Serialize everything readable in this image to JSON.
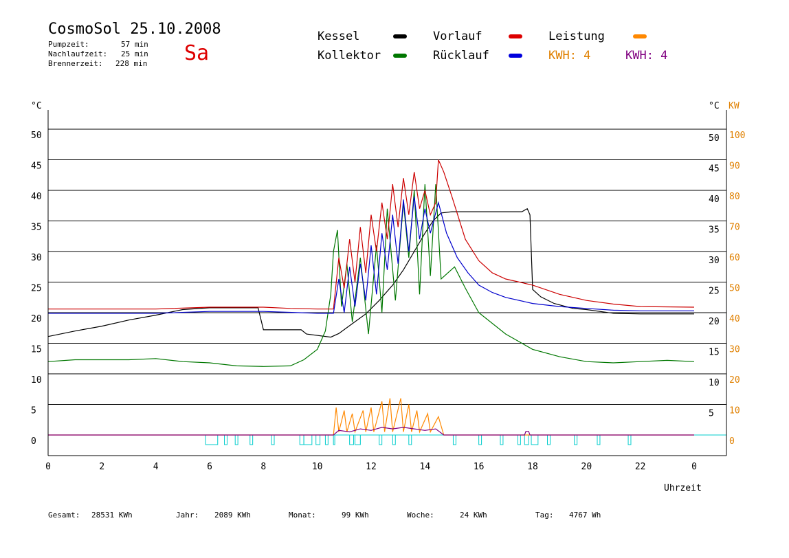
{
  "header": {
    "title": "CosmoSol 25.10.2008",
    "day": "Sa",
    "stats": [
      {
        "label": "Pumpzeit:",
        "value": "57 min"
      },
      {
        "label": "Nachlaufzeit:",
        "value": "25 min"
      },
      {
        "label": "Brennerzeit:",
        "value": "228 min"
      }
    ]
  },
  "legend": {
    "kessel": "Kessel",
    "kollektor": "Kollektor",
    "vorlauf": "Vorlauf",
    "ruecklauf": "Rücklauf",
    "leistung": "Leistung",
    "kwh1": "KWH: 4",
    "kwh2": "KWH: 4"
  },
  "footer": {
    "gesamt_label": "Gesamt:",
    "gesamt_value": "28531 KWh",
    "jahr_label": "Jahr:",
    "jahr_value": "2089 KWh",
    "monat_label": "Monat:",
    "monat_value": "99 KWh",
    "woche_label": "Woche:",
    "woche_value": "24 KWh",
    "tag_label": "Tag:",
    "tag_value": "4767 Wh"
  },
  "colors": {
    "kessel": "#000000",
    "kollektor": "#007700",
    "vorlauf": "#cc0000",
    "ruecklauf": "#0000cc",
    "leistung": "#ff8800",
    "kwh2": "#800080",
    "pump": "#00cccc",
    "axis_right2": "#e08000"
  },
  "chart_data": {
    "type": "line",
    "xlabel": "Uhrzeit",
    "ylabel_left": "°C",
    "ylabel_right": "°C",
    "ylabel_right2": "KW",
    "xlim": [
      0,
      24
    ],
    "ylim": [
      -3.5,
      50
    ],
    "ylim_right2": [
      -7,
      100
    ],
    "x_tick_labels": [
      "0",
      "2",
      "4",
      "6",
      "8",
      "10",
      "12",
      "14",
      "16",
      "18",
      "20",
      "22",
      "0"
    ],
    "y_ticks": [
      0,
      5,
      10,
      15,
      20,
      25,
      30,
      35,
      40,
      45,
      50
    ],
    "y_ticks_right2": [
      0,
      10,
      20,
      30,
      40,
      50,
      60,
      70,
      80,
      90,
      100
    ],
    "grid": true,
    "series": [
      {
        "name": "Kessel",
        "color": "#000000",
        "points": [
          [
            0,
            16.1
          ],
          [
            1,
            17
          ],
          [
            2,
            17.8
          ],
          [
            3,
            18.8
          ],
          [
            4,
            19.6
          ],
          [
            5,
            20.5
          ],
          [
            6,
            20.8
          ],
          [
            7,
            20.8
          ],
          [
            7.8,
            20.8
          ],
          [
            8,
            17.2
          ],
          [
            9.4,
            17.2
          ],
          [
            9.6,
            16.5
          ],
          [
            10.5,
            16
          ],
          [
            10.8,
            16.6
          ],
          [
            11.3,
            18.2
          ],
          [
            11.8,
            19.8
          ],
          [
            12.3,
            22
          ],
          [
            12.8,
            24.5
          ],
          [
            13.2,
            27
          ],
          [
            13.6,
            30
          ],
          [
            14,
            33
          ],
          [
            14.3,
            35
          ],
          [
            14.6,
            36.3
          ],
          [
            15,
            36.5
          ],
          [
            16,
            36.5
          ],
          [
            17,
            36.5
          ],
          [
            17.6,
            36.5
          ],
          [
            17.8,
            37
          ],
          [
            17.9,
            36
          ],
          [
            18,
            23.8
          ],
          [
            18.3,
            22.6
          ],
          [
            18.8,
            21.5
          ],
          [
            19.5,
            20.7
          ],
          [
            20,
            20.5
          ],
          [
            21,
            19.9
          ],
          [
            22,
            19.8
          ],
          [
            24,
            19.8
          ]
        ]
      },
      {
        "name": "Kollektor",
        "color": "#007700",
        "points": [
          [
            0,
            12
          ],
          [
            1,
            12.3
          ],
          [
            2,
            12.3
          ],
          [
            3,
            12.3
          ],
          [
            4,
            12.5
          ],
          [
            5,
            12
          ],
          [
            6,
            11.8
          ],
          [
            7,
            11.3
          ],
          [
            8,
            11.2
          ],
          [
            9,
            11.3
          ],
          [
            9.5,
            12.3
          ],
          [
            10,
            14
          ],
          [
            10.3,
            17
          ],
          [
            10.5,
            23
          ],
          [
            10.6,
            30
          ],
          [
            10.75,
            33.5
          ],
          [
            10.9,
            21
          ],
          [
            11.1,
            28
          ],
          [
            11.3,
            18.5
          ],
          [
            11.6,
            29
          ],
          [
            11.9,
            16.5
          ],
          [
            12.2,
            31
          ],
          [
            12.4,
            20
          ],
          [
            12.6,
            37
          ],
          [
            12.9,
            22
          ],
          [
            13.2,
            38
          ],
          [
            13.4,
            29
          ],
          [
            13.6,
            40
          ],
          [
            13.8,
            23
          ],
          [
            14,
            41
          ],
          [
            14.2,
            26
          ],
          [
            14.4,
            41
          ],
          [
            14.6,
            25.5
          ],
          [
            15.1,
            27.5
          ],
          [
            15.5,
            24
          ],
          [
            16,
            20
          ],
          [
            17,
            16.5
          ],
          [
            18,
            14
          ],
          [
            19,
            12.8
          ],
          [
            20,
            12
          ],
          [
            21,
            11.8
          ],
          [
            22,
            12
          ],
          [
            23,
            12.2
          ],
          [
            24,
            12
          ]
        ]
      },
      {
        "name": "Vorlauf",
        "color": "#cc0000",
        "points": [
          [
            0,
            20.6
          ],
          [
            2,
            20.6
          ],
          [
            4,
            20.6
          ],
          [
            6,
            20.9
          ],
          [
            8,
            20.9
          ],
          [
            9,
            20.7
          ],
          [
            10,
            20.6
          ],
          [
            10.6,
            20.6
          ],
          [
            10.8,
            29
          ],
          [
            11,
            24
          ],
          [
            11.2,
            32
          ],
          [
            11.4,
            25
          ],
          [
            11.6,
            34
          ],
          [
            11.8,
            26.5
          ],
          [
            12,
            36
          ],
          [
            12.2,
            30
          ],
          [
            12.4,
            38
          ],
          [
            12.6,
            32
          ],
          [
            12.8,
            41
          ],
          [
            13,
            34
          ],
          [
            13.2,
            42
          ],
          [
            13.4,
            36
          ],
          [
            13.6,
            43
          ],
          [
            13.8,
            37
          ],
          [
            14,
            40
          ],
          [
            14.2,
            36
          ],
          [
            14.4,
            38
          ],
          [
            14.5,
            45
          ],
          [
            14.7,
            43
          ],
          [
            15,
            39
          ],
          [
            15.5,
            32
          ],
          [
            16,
            28.5
          ],
          [
            16.5,
            26.5
          ],
          [
            17,
            25.5
          ],
          [
            18,
            24.5
          ],
          [
            19,
            23
          ],
          [
            20,
            22
          ],
          [
            21,
            21.4
          ],
          [
            22,
            21
          ],
          [
            24,
            20.9
          ]
        ]
      },
      {
        "name": "Rücklauf",
        "color": "#0000cc",
        "points": [
          [
            0,
            19.9
          ],
          [
            2,
            19.9
          ],
          [
            4,
            19.9
          ],
          [
            6,
            20.2
          ],
          [
            8,
            20.2
          ],
          [
            10,
            19.9
          ],
          [
            10.6,
            19.9
          ],
          [
            10.8,
            25.5
          ],
          [
            11,
            20
          ],
          [
            11.2,
            27.5
          ],
          [
            11.4,
            21
          ],
          [
            11.6,
            28
          ],
          [
            11.8,
            22
          ],
          [
            12,
            31
          ],
          [
            12.2,
            23
          ],
          [
            12.4,
            33
          ],
          [
            12.6,
            27
          ],
          [
            12.8,
            36
          ],
          [
            13,
            28
          ],
          [
            13.2,
            38.5
          ],
          [
            13.4,
            30
          ],
          [
            13.6,
            39
          ],
          [
            13.8,
            32
          ],
          [
            14,
            37
          ],
          [
            14.2,
            33
          ],
          [
            14.5,
            38
          ],
          [
            14.8,
            33
          ],
          [
            15.2,
            29
          ],
          [
            15.6,
            26.5
          ],
          [
            16,
            24.5
          ],
          [
            16.5,
            23.3
          ],
          [
            17,
            22.5
          ],
          [
            18,
            21.5
          ],
          [
            19,
            21
          ],
          [
            20,
            20.7
          ],
          [
            21,
            20.4
          ],
          [
            22,
            20.3
          ],
          [
            24,
            20.3
          ]
        ]
      }
    ],
    "power_series": [
      {
        "name": "Leistung",
        "color": "#ff8800",
        "axis": "right2",
        "points": [
          [
            0,
            0
          ],
          [
            10.6,
            0
          ],
          [
            10.7,
            9
          ],
          [
            10.8,
            1
          ],
          [
            11,
            8
          ],
          [
            11.1,
            1
          ],
          [
            11.3,
            7
          ],
          [
            11.4,
            1
          ],
          [
            11.7,
            8
          ],
          [
            11.8,
            1
          ],
          [
            12,
            9
          ],
          [
            12.1,
            1
          ],
          [
            12.4,
            11
          ],
          [
            12.5,
            1
          ],
          [
            12.7,
            12
          ],
          [
            12.8,
            1
          ],
          [
            13.1,
            12
          ],
          [
            13.2,
            1
          ],
          [
            13.4,
            10
          ],
          [
            13.5,
            1
          ],
          [
            13.7,
            8
          ],
          [
            13.8,
            1
          ],
          [
            14.1,
            7
          ],
          [
            14.2,
            1
          ],
          [
            14.5,
            6
          ],
          [
            14.7,
            0
          ],
          [
            24,
            0
          ]
        ]
      },
      {
        "name": "KWH",
        "color": "#800080",
        "axis": "right2",
        "points": [
          [
            0,
            0
          ],
          [
            10.6,
            0
          ],
          [
            10.8,
            1.5
          ],
          [
            11.2,
            1
          ],
          [
            11.6,
            2
          ],
          [
            12,
            1.5
          ],
          [
            12.4,
            2.5
          ],
          [
            12.8,
            2
          ],
          [
            13.2,
            2.5
          ],
          [
            13.6,
            2
          ],
          [
            14,
            1.5
          ],
          [
            14.4,
            2
          ],
          [
            14.7,
            0
          ],
          [
            17.7,
            0
          ],
          [
            17.75,
            1.2
          ],
          [
            17.85,
            1.2
          ],
          [
            17.9,
            0
          ],
          [
            24,
            0
          ]
        ]
      }
    ],
    "pump_periods": [
      [
        5.85,
        6.3
      ],
      [
        6.55,
        6.65
      ],
      [
        6.95,
        7.05
      ],
      [
        7.5,
        7.6
      ],
      [
        8.3,
        8.4
      ],
      [
        9.35,
        9.5
      ],
      [
        9.5,
        9.8
      ],
      [
        9.95,
        10.1
      ],
      [
        10.3,
        10.4
      ],
      [
        10.6,
        10.65
      ],
      [
        11.2,
        11.35
      ],
      [
        11.4,
        11.6
      ],
      [
        12.3,
        12.4
      ],
      [
        12.8,
        12.9
      ],
      [
        13.4,
        13.5
      ],
      [
        15.05,
        15.15
      ],
      [
        16,
        16.1
      ],
      [
        16.8,
        16.9
      ],
      [
        17.45,
        17.55
      ],
      [
        17.7,
        17.85
      ],
      [
        17.95,
        18.2
      ],
      [
        18.55,
        18.65
      ],
      [
        19.55,
        19.65
      ],
      [
        20.4,
        20.5
      ],
      [
        21.55,
        21.65
      ]
    ]
  }
}
